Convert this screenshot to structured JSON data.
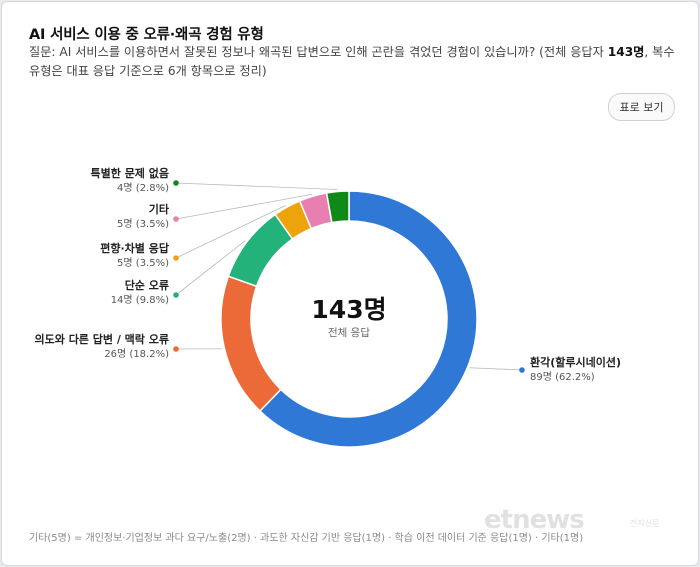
{
  "title_prefix": "AI",
  "title_rest": "서비스 이용 중 오류·왜곡 경험 유형",
  "question": {
    "before": "질문: AI 서비스를 이용하면서 잘못된 정보나 왜곡된 답변으로 인해 곤란을 겪었던 경험이 있습니까? (전체 응답자 ",
    "bold": "143명",
    "after": ", 복수 유형은 대표 응답 기준으로 6개 항목으로 정리)"
  },
  "table_button_label": "표로 보기",
  "footnote": "기타(5명) = 개인정보·기업정보 과다 요구/노출(2명) · 과도한 자신감 기반 응답(1명) · 학습 이전 데이터 기준 응답(1명) · 기타(1명)",
  "watermark": {
    "logo": "etnews",
    "caption": "전자신문"
  },
  "chart_data": {
    "type": "pie",
    "center_value": "143명",
    "center_label": "전체 응답",
    "total": 143,
    "slices": [
      {
        "label": "환각(할루시네이션)",
        "count": 89,
        "count_text": "89명",
        "pct_text": "(62.2%)",
        "color": "#2f78d6"
      },
      {
        "label": "의도와 다른 답변 / 맥락 오류",
        "count": 26,
        "count_text": "26명",
        "pct_text": "(18.2%)",
        "color": "#eb6a37"
      },
      {
        "label": "단순 오류",
        "count": 14,
        "count_text": "14명",
        "pct_text": "(9.8%)",
        "color": "#22b27a"
      },
      {
        "label": "편향·차별 응답",
        "count": 5,
        "count_text": "5명",
        "pct_text": "(3.5%)",
        "color": "#eda40c"
      },
      {
        "label": "기타",
        "count": 5,
        "count_text": "5명",
        "pct_text": "(3.5%)",
        "color": "#e87fb0"
      },
      {
        "label": "특별한 문제 없음",
        "count": 4,
        "count_text": "4명",
        "pct_text": "(2.8%)",
        "color": "#0f8a17"
      }
    ]
  }
}
